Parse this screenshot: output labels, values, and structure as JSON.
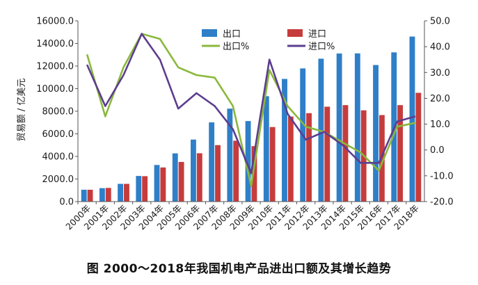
{
  "caption": "图  2000～2018年我国机电产品进出口额及其增长趋势",
  "chart_data": {
    "type": "bar",
    "title": "",
    "xlabel": "",
    "ylabel": "贸易额 / 亿美元",
    "ylim": [
      0,
      16000
    ],
    "y2lim": [
      -20,
      50
    ],
    "yticks": [
      "0.0",
      "2000.0",
      "4000.0",
      "6000.0",
      "8000.0",
      "10000.0",
      "12000.0",
      "14000.0",
      "16000.0"
    ],
    "y2ticks": [
      "-20.0",
      "-10.0",
      "0.0",
      "10.0",
      "20.0",
      "30.0",
      "40.0",
      "50.0"
    ],
    "categories": [
      "2000年",
      "2001年",
      "2002年",
      "2003年",
      "2004年",
      "2005年",
      "2006年",
      "2007年",
      "2008年",
      "2009年",
      "2010年",
      "2011年",
      "2012年",
      "2013年",
      "2014年",
      "2015年",
      "2016年",
      "2017年",
      "2018年"
    ],
    "legend": [
      "出口",
      "进口",
      "出口%",
      "进口%"
    ],
    "bars": [
      {
        "name": "出口",
        "color": "#2f7fc8",
        "values": [
          1050,
          1190,
          1570,
          2270,
          3240,
          4270,
          5490,
          7010,
          8230,
          7130,
          9330,
          10860,
          11790,
          12650,
          13110,
          13120,
          12090,
          13210,
          14610
        ]
      },
      {
        "name": "进口",
        "color": "#c63c3c",
        "values": [
          1050,
          1210,
          1570,
          2250,
          3020,
          3510,
          4280,
          5000,
          5390,
          4910,
          6600,
          7530,
          7830,
          8400,
          8540,
          8080,
          7660,
          8540,
          9630
        ]
      }
    ],
    "lines": [
      {
        "name": "出口%",
        "color": "#8ab83c",
        "values": [
          37,
          13,
          32,
          45,
          43,
          32,
          29,
          28,
          17,
          -14,
          31,
          17,
          9,
          7,
          3,
          -1,
          -8,
          9,
          10.5
        ]
      },
      {
        "name": "进口%",
        "color": "#5c3d8f",
        "values": [
          33,
          17,
          29,
          45,
          35,
          16,
          22,
          17,
          8,
          -9,
          35,
          14,
          4,
          7,
          2,
          -5,
          -5,
          11,
          13
        ]
      }
    ]
  }
}
